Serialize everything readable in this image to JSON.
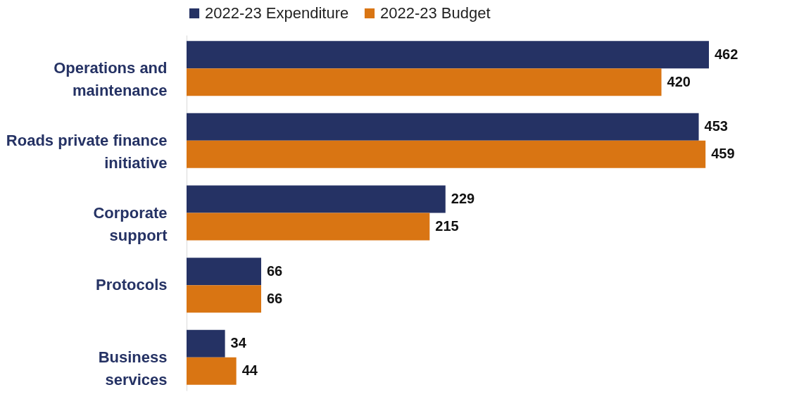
{
  "chart_data": {
    "type": "bar",
    "orientation": "horizontal",
    "categories": [
      "Operations and maintenance",
      "Roads private finance initiative",
      "Corporate support",
      "Protocols",
      "Business services"
    ],
    "series": [
      {
        "name": "2022-23 Expenditure",
        "color": "#253264",
        "values": [
          462,
          453,
          229,
          66,
          34
        ]
      },
      {
        "name": "2022-23 Budget",
        "color": "#d97513",
        "values": [
          420,
          459,
          215,
          66,
          44
        ]
      }
    ],
    "data_labels": true,
    "legend": "top",
    "grid": false
  }
}
